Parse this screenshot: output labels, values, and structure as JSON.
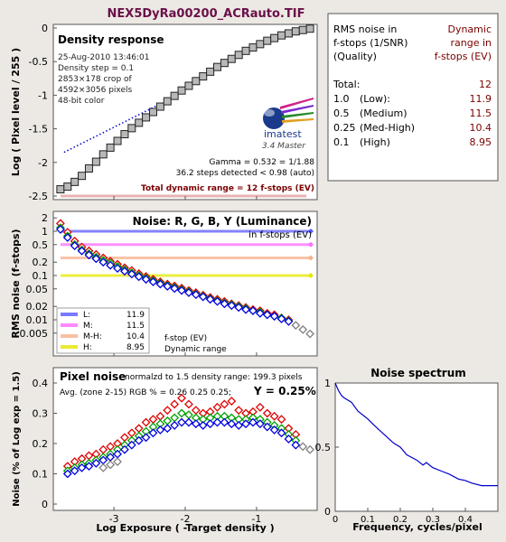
{
  "title": "NEX5DyRa00200_ACRauto.TIF",
  "colors": {
    "title": "#6b0f4a",
    "bg": "#ece9e4",
    "panel": "#ffffff",
    "dark_red": "#7a0000",
    "gray_marker": "#b8b8b8",
    "low": "#5a5aff",
    "medium": "#ff6bff",
    "medhigh": "#f6b08a",
    "high": "#e6e600"
  },
  "density_panel": {
    "heading": "Density response",
    "info": [
      "25-Aug-2010 13:46:01",
      "Density step = 0.1",
      "2853×178 crop of",
      "4592×3056 pixels",
      "48-bit color"
    ],
    "logo_text": "imatest",
    "logo_sub": "3.4  Master",
    "gamma_text": "Gamma = 0.532 = 1/1.88",
    "steps_text": "36.2 steps detected < 0.98 (auto)",
    "dynamic_range_text": "Total dynamic range = 12 f-stops (EV)"
  },
  "noise_panel": {
    "heading": "Noise: R, G, B, Y (Luminance)",
    "subheading": "in f-stops (EV)",
    "legend": [
      {
        "label": "L:",
        "value": "11.9"
      },
      {
        "label": "M:",
        "value": "11.5"
      },
      {
        "label": "M-H:",
        "value": "10.4"
      },
      {
        "label": "H:",
        "value": "8.95"
      }
    ],
    "legend_note1": "f-stop (EV)",
    "legend_note2": "Dynamic range"
  },
  "pixel_panel": {
    "heading": "Pixel noise",
    "note": "normalzd to 1.5 density range: 199.3 pixels",
    "avg_text": "Avg. (zone 2-15) RGB % = 0.26  0.25  0.25;",
    "y_text": "Y = 0.25%"
  },
  "table": {
    "header_left": [
      "RMS noise in",
      "f-stops (1/SNR)",
      "(Quality)"
    ],
    "header_right": [
      "Dynamic",
      "range in",
      "f-stops (EV)"
    ],
    "rows": [
      {
        "q": "Total:",
        "name": "",
        "value": "12"
      },
      {
        "q": "1.0",
        "name": "(Low):",
        "value": "11.9"
      },
      {
        "q": "0.5",
        "name": "(Medium)",
        "value": "11.5"
      },
      {
        "q": "0.25",
        "name": "(Med-High)",
        "value": "10.4"
      },
      {
        "q": "0.1",
        "name": "(High)",
        "value": "8.95"
      }
    ]
  },
  "chart_data": [
    {
      "type": "line",
      "ylabel": "Log ( Pixel level / 255 )",
      "xlim": [
        -3.85,
        -0.15
      ],
      "ylim": [
        -2.5,
        0
      ],
      "yticks": [
        "0",
        "-0.5",
        "-1",
        "-1.5",
        "-2",
        "-2.5"
      ],
      "series": [
        {
          "values_x": [
            -3.75,
            -3.65,
            -3.55,
            -3.45,
            -3.35,
            -3.25,
            -3.15,
            -3.05,
            -2.95,
            -2.85,
            -2.75,
            -2.65,
            -2.55,
            -2.45,
            -2.35,
            -2.25,
            -2.15,
            -2.05,
            -1.95,
            -1.85,
            -1.75,
            -1.65,
            -1.55,
            -1.45,
            -1.35,
            -1.25,
            -1.15,
            -1.05,
            -0.95,
            -0.85,
            -0.75,
            -0.65,
            -0.55,
            -0.45,
            -0.35,
            -0.25
          ],
          "values_y": [
            -2.4,
            -2.36,
            -2.29,
            -2.2,
            -2.09,
            -1.99,
            -1.88,
            -1.78,
            -1.68,
            -1.58,
            -1.49,
            -1.41,
            -1.33,
            -1.25,
            -1.17,
            -1.09,
            -1.01,
            -0.93,
            -0.86,
            -0.79,
            -0.72,
            -0.65,
            -0.58,
            -0.52,
            -0.46,
            -0.4,
            -0.34,
            -0.29,
            -0.24,
            -0.19,
            -0.15,
            -0.11,
            -0.08,
            -0.05,
            -0.03,
            -0.01
          ]
        },
        {
          "name": "gamma fit",
          "values_x": [
            -3.7,
            -2.2
          ],
          "values_y": [
            -1.85,
            -1.05
          ]
        }
      ]
    },
    {
      "type": "scatter",
      "ylabel": "RMS noise (f-stops)",
      "log_y": true,
      "xlim": [
        -3.85,
        -0.15
      ],
      "ylim": [
        0.003,
        3
      ],
      "yticks": [
        "2",
        "1",
        "0.5",
        "0.2",
        "0.1",
        "0.05",
        "0.02",
        "0.01",
        "0.005"
      ],
      "ytick_values": [
        2,
        1,
        0.5,
        0.2,
        0.1,
        0.05,
        0.02,
        0.01,
        0.005
      ],
      "thresholds": [
        1.0,
        0.5,
        0.25,
        0.1
      ],
      "threshold_start_x": [
        -3.75,
        -3.75,
        -3.75,
        -3.75
      ],
      "series": [
        {
          "name": "R",
          "color": "#e00000",
          "values_x": [
            -3.75,
            -3.65,
            -3.55,
            -3.45,
            -3.35,
            -3.25,
            -3.15,
            -3.05,
            -2.95,
            -2.85,
            -2.75,
            -2.65,
            -2.55,
            -2.45,
            -2.35,
            -2.25,
            -2.15,
            -2.05,
            -1.95,
            -1.85,
            -1.75,
            -1.65,
            -1.55,
            -1.45,
            -1.35,
            -1.25,
            -1.15,
            -1.05,
            -0.95,
            -0.85,
            -0.75,
            -0.65,
            -0.55
          ],
          "values_y": [
            1.5,
            0.95,
            0.6,
            0.44,
            0.36,
            0.3,
            0.25,
            0.21,
            0.18,
            0.15,
            0.13,
            0.11,
            0.095,
            0.082,
            0.072,
            0.064,
            0.058,
            0.052,
            0.046,
            0.041,
            0.036,
            0.032,
            0.029,
            0.026,
            0.023,
            0.021,
            0.019,
            0.017,
            0.016,
            0.014,
            0.013,
            0.011,
            0.01
          ]
        },
        {
          "name": "G",
          "color": "#00a000",
          "values_x": [
            -3.75,
            -3.65,
            -3.55,
            -3.45,
            -3.35,
            -3.25,
            -3.15,
            -3.05,
            -2.95,
            -2.85,
            -2.75,
            -2.65,
            -2.55,
            -2.45,
            -2.35,
            -2.25,
            -2.15,
            -2.05,
            -1.95,
            -1.85,
            -1.75,
            -1.65,
            -1.55,
            -1.45,
            -1.35,
            -1.25,
            -1.15,
            -1.05,
            -0.95,
            -0.85,
            -0.75,
            -0.65,
            -0.55
          ],
          "values_y": [
            1.2,
            0.78,
            0.5,
            0.38,
            0.31,
            0.26,
            0.22,
            0.19,
            0.16,
            0.135,
            0.115,
            0.1,
            0.087,
            0.076,
            0.067,
            0.06,
            0.054,
            0.048,
            0.043,
            0.038,
            0.034,
            0.03,
            0.027,
            0.024,
            0.022,
            0.02,
            0.018,
            0.016,
            0.015,
            0.013,
            0.012,
            0.011,
            0.0095
          ]
        },
        {
          "name": "B",
          "color": "#0000e0",
          "values_x": [
            -3.75,
            -3.65,
            -3.55,
            -3.45,
            -3.35,
            -3.25,
            -3.15,
            -3.05,
            -2.95,
            -2.85,
            -2.75,
            -2.65,
            -2.55,
            -2.45,
            -2.35,
            -2.25,
            -2.15,
            -2.05,
            -1.95,
            -1.85,
            -1.75,
            -1.65,
            -1.55,
            -1.45,
            -1.35,
            -1.25,
            -1.15,
            -1.05,
            -0.95,
            -0.85,
            -0.75,
            -0.65,
            -0.55
          ],
          "values_y": [
            1.1,
            0.72,
            0.47,
            0.36,
            0.29,
            0.24,
            0.2,
            0.17,
            0.145,
            0.125,
            0.108,
            0.094,
            0.082,
            0.072,
            0.064,
            0.057,
            0.051,
            0.046,
            0.041,
            0.037,
            0.033,
            0.029,
            0.026,
            0.023,
            0.021,
            0.019,
            0.017,
            0.016,
            0.014,
            0.013,
            0.012,
            0.0105,
            0.0092
          ]
        },
        {
          "name": "Y",
          "color": "#808080",
          "values_x": [
            -0.45,
            -0.35,
            -0.25
          ],
          "values_y": [
            0.0075,
            0.006,
            0.0048
          ]
        }
      ]
    },
    {
      "type": "scatter",
      "xlabel": "Log Exposure ( -Target density )",
      "ylabel": "Noise (% of Log exp = 1.5)",
      "xlim": [
        -3.85,
        -0.15
      ],
      "ylim": [
        0,
        0.4
      ],
      "xticks": [
        "-3",
        "-2",
        "-1"
      ],
      "xtick_values": [
        -3,
        -2,
        -1
      ],
      "yticks": [
        "0.4",
        "0.3",
        "0.2",
        "0.1",
        "0"
      ],
      "ytick_values": [
        0.4,
        0.3,
        0.2,
        0.1,
        0
      ],
      "series": [
        {
          "name": "R",
          "color": "#e00000",
          "values_x": [
            -3.65,
            -3.55,
            -3.45,
            -3.35,
            -3.25,
            -3.15,
            -3.05,
            -2.95,
            -2.85,
            -2.75,
            -2.65,
            -2.55,
            -2.45,
            -2.35,
            -2.25,
            -2.15,
            -2.05,
            -1.95,
            -1.85,
            -1.75,
            -1.65,
            -1.55,
            -1.45,
            -1.35,
            -1.25,
            -1.15,
            -1.05,
            -0.95,
            -0.85,
            -0.75,
            -0.65,
            -0.55,
            -0.45
          ],
          "values_y": [
            0.125,
            0.14,
            0.15,
            0.16,
            0.165,
            0.18,
            0.19,
            0.2,
            0.22,
            0.235,
            0.25,
            0.27,
            0.28,
            0.29,
            0.31,
            0.33,
            0.35,
            0.33,
            0.31,
            0.3,
            0.305,
            0.32,
            0.33,
            0.34,
            0.31,
            0.3,
            0.305,
            0.32,
            0.3,
            0.29,
            0.28,
            0.25,
            0.23
          ]
        },
        {
          "name": "G",
          "color": "#00a000",
          "values_x": [
            -3.65,
            -3.55,
            -3.45,
            -3.35,
            -3.25,
            -3.15,
            -3.05,
            -2.95,
            -2.85,
            -2.75,
            -2.65,
            -2.55,
            -2.45,
            -2.35,
            -2.25,
            -2.15,
            -2.05,
            -1.95,
            -1.85,
            -1.75,
            -1.65,
            -1.55,
            -1.45,
            -1.35,
            -1.25,
            -1.15,
            -1.05,
            -0.95,
            -0.85,
            -0.75,
            -0.65,
            -0.55,
            -0.45
          ],
          "values_y": [
            0.11,
            0.12,
            0.13,
            0.135,
            0.145,
            0.155,
            0.165,
            0.18,
            0.195,
            0.21,
            0.225,
            0.24,
            0.255,
            0.265,
            0.275,
            0.285,
            0.3,
            0.295,
            0.285,
            0.28,
            0.285,
            0.29,
            0.29,
            0.285,
            0.28,
            0.28,
            0.285,
            0.28,
            0.27,
            0.26,
            0.25,
            0.23,
            0.21
          ]
        },
        {
          "name": "B",
          "color": "#0000e0",
          "values_x": [
            -3.65,
            -3.55,
            -3.45,
            -3.35,
            -3.25,
            -3.15,
            -3.05,
            -2.95,
            -2.85,
            -2.75,
            -2.65,
            -2.55,
            -2.45,
            -2.35,
            -2.25,
            -2.15,
            -2.05,
            -1.95,
            -1.85,
            -1.75,
            -1.65,
            -1.55,
            -1.45,
            -1.35,
            -1.25,
            -1.15,
            -1.05,
            -0.95,
            -0.85,
            -0.75,
            -0.65,
            -0.55,
            -0.45
          ],
          "values_y": [
            0.1,
            0.11,
            0.12,
            0.125,
            0.135,
            0.145,
            0.155,
            0.165,
            0.18,
            0.195,
            0.21,
            0.22,
            0.235,
            0.245,
            0.25,
            0.26,
            0.27,
            0.27,
            0.265,
            0.26,
            0.265,
            0.27,
            0.27,
            0.265,
            0.26,
            0.265,
            0.27,
            0.265,
            0.255,
            0.245,
            0.235,
            0.215,
            0.195
          ]
        },
        {
          "name": "Y",
          "color": "#808080",
          "values_x": [
            -3.15,
            -3.05,
            -2.95,
            -0.35,
            -0.25
          ],
          "values_y": [
            0.12,
            0.13,
            0.14,
            0.19,
            0.18
          ]
        }
      ]
    },
    {
      "type": "line",
      "title": "Noise spectrum",
      "xlabel": "Frequency, cycles/pixel",
      "xlim": [
        0,
        0.5
      ],
      "ylim": [
        0,
        1
      ],
      "xticks": [
        "0",
        "0.1",
        "0.2",
        "0.3",
        "0.4"
      ],
      "xtick_values": [
        0,
        0.1,
        0.2,
        0.3,
        0.4
      ],
      "yticks": [
        "1",
        "0.5",
        "0"
      ],
      "ytick_values": [
        1,
        0.5,
        0
      ],
      "series": [
        {
          "values_x": [
            0,
            0.01,
            0.02,
            0.03,
            0.05,
            0.07,
            0.09,
            0.1,
            0.12,
            0.15,
            0.18,
            0.2,
            0.22,
            0.25,
            0.27,
            0.28,
            0.3,
            0.33,
            0.35,
            0.38,
            0.4,
            0.42,
            0.45,
            0.48,
            0.5
          ],
          "values_y": [
            1,
            0.94,
            0.9,
            0.88,
            0.85,
            0.78,
            0.74,
            0.72,
            0.67,
            0.6,
            0.53,
            0.5,
            0.44,
            0.4,
            0.36,
            0.38,
            0.34,
            0.31,
            0.29,
            0.25,
            0.24,
            0.22,
            0.2,
            0.2,
            0.2
          ]
        }
      ]
    }
  ]
}
